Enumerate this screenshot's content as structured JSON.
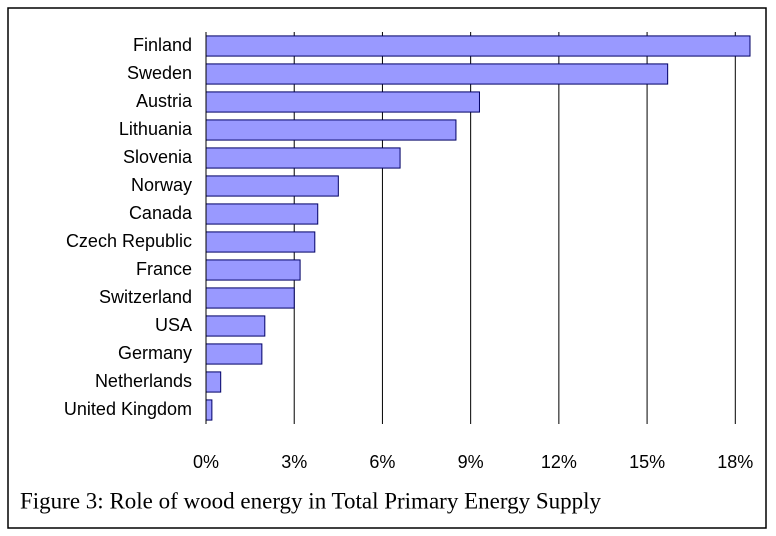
{
  "chart_data": {
    "type": "hbar",
    "caption": "Figure 3: Role of wood energy in Total Primary Energy Supply",
    "categories": [
      "Finland",
      "Sweden",
      "Austria",
      "Lithuania",
      "Slovenia",
      "Norway",
      "Canada",
      "Czech Republic",
      "France",
      "Switzerland",
      "USA",
      "Germany",
      "Netherlands",
      "United Kingdom"
    ],
    "values": [
      18.5,
      15.7,
      9.3,
      8.5,
      6.6,
      4.5,
      3.8,
      3.7,
      3.2,
      3.0,
      2.0,
      1.9,
      0.5,
      0.2
    ],
    "color": "#9999ff",
    "xlim": [
      0,
      18.5
    ],
    "xticks": [
      {
        "value": 0,
        "label": "0%"
      },
      {
        "value": 3,
        "label": "3%"
      },
      {
        "value": 6,
        "label": "6%"
      },
      {
        "value": 9,
        "label": "9%"
      },
      {
        "value": 12,
        "label": "12%"
      },
      {
        "value": 15,
        "label": "15%"
      },
      {
        "value": 18,
        "label": "18%"
      }
    ],
    "grid": true
  }
}
